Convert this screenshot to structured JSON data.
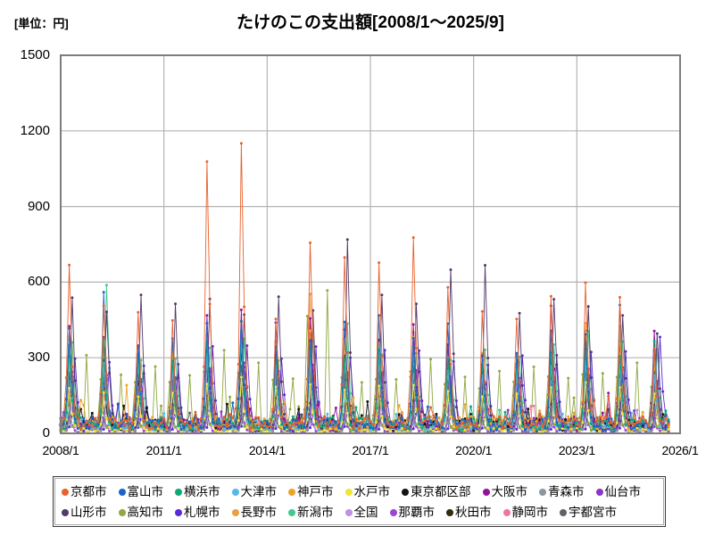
{
  "header": {
    "title": "たけのこの支出額[2008/1～2025/9]",
    "unit_label": "[単位：円]"
  },
  "colors": {
    "background": "#ffffff",
    "axis_border": "#7d7d7d",
    "gridline": "#b4b4b4",
    "text": "#000000"
  },
  "chart_data": {
    "type": "line",
    "title": "たけのこの支出額[2008/1～2025/9]",
    "unit": "円",
    "x_start": "2008/1",
    "x_end": "2025/9",
    "x_ticks": [
      "2008/1",
      "2011/1",
      "2014/1",
      "2017/1",
      "2020/1",
      "2023/1",
      "2026/1"
    ],
    "months_span": 216,
    "data_months": 213,
    "ylim": [
      0,
      1500
    ],
    "y_ticks": [
      0,
      300,
      600,
      900,
      1200,
      1500
    ],
    "grid": true,
    "legend_position": "bottom",
    "seasonality_note": "monthly series, sharp spring spikes each year, low off-season baseline",
    "peak_years": [
      2008,
      2009,
      2010,
      2011,
      2012,
      2013,
      2014,
      2015,
      2016,
      2017,
      2018,
      2019,
      2020,
      2021,
      2022,
      2023,
      2024,
      2025
    ],
    "series": [
      {
        "name": "京都市",
        "color": "#E8622D",
        "baseline": 45,
        "peak_month": 3,
        "peaks": [
          700,
          520,
          470,
          440,
          1120,
          1113,
          460,
          790,
          690,
          665,
          768,
          560,
          470,
          470,
          530,
          585,
          545,
          350
        ]
      },
      {
        "name": "富山市",
        "color": "#1C63C8",
        "baseline": 40,
        "peak_month": 3,
        "peaks": [
          430,
          555,
          340,
          380,
          420,
          430,
          360,
          380,
          430,
          450,
          390,
          420,
          310,
          330,
          420,
          380,
          500,
          320
        ]
      },
      {
        "name": "横浜市",
        "color": "#0EA878",
        "baseline": 42,
        "peak_month": 3,
        "peaks": [
          350,
          380,
          300,
          285,
          350,
          400,
          320,
          350,
          305,
          330,
          350,
          285,
          265,
          285,
          320,
          350,
          305,
          380
        ]
      },
      {
        "name": "大津市",
        "color": "#55B8E8",
        "baseline": 35,
        "peak_month": 3,
        "peaks": [
          300,
          285,
          255,
          260,
          320,
          350,
          280,
          300,
          285,
          300,
          320,
          250,
          235,
          250,
          280,
          300,
          280,
          225
        ]
      },
      {
        "name": "神戸市",
        "color": "#EDA32A",
        "baseline": 45,
        "peak_month": 3,
        "peaks": [
          385,
          350,
          305,
          330,
          400,
          430,
          350,
          400,
          380,
          355,
          400,
          305,
          285,
          300,
          350,
          420,
          400,
          285
        ]
      },
      {
        "name": "水戸市",
        "color": "#F2E436",
        "baseline": 15,
        "peak_month": 3,
        "peaks": [
          180,
          160,
          150,
          160,
          200,
          220,
          180,
          200,
          180,
          190,
          200,
          160,
          150,
          160,
          180,
          200,
          190,
          150
        ]
      },
      {
        "name": "東京都区部",
        "color": "#141414",
        "baseline": 40,
        "peak_month": 3,
        "peaks": [
          300,
          285,
          260,
          270,
          330,
          350,
          300,
          320,
          300,
          310,
          320,
          270,
          250,
          260,
          290,
          310,
          300,
          245
        ]
      },
      {
        "name": "大阪市",
        "color": "#96119B",
        "baseline": 40,
        "peak_month": 3,
        "peaks": [
          430,
          400,
          350,
          335,
          450,
          500,
          420,
          460,
          430,
          380,
          430,
          350,
          300,
          320,
          530,
          400,
          380,
          390
        ]
      },
      {
        "name": "青森市",
        "color": "#8C96A0",
        "baseline": 20,
        "peak_month": 4,
        "peaks": [
          150,
          140,
          130,
          140,
          170,
          180,
          150,
          160,
          150,
          160,
          170,
          140,
          130,
          140,
          150,
          160,
          155,
          120
        ]
      },
      {
        "name": "仙台市",
        "color": "#8D35C8",
        "baseline": 30,
        "peak_month": 4,
        "peaks": [
          250,
          230,
          210,
          220,
          270,
          290,
          250,
          260,
          240,
          250,
          260,
          220,
          200,
          210,
          240,
          260,
          250,
          200
        ]
      },
      {
        "name": "山形市",
        "color": "#54396B",
        "baseline": 25,
        "peak_month": 4,
        "peaks": [
          520,
          480,
          530,
          530,
          520,
          470,
          530,
          480,
          755,
          540,
          520,
          650,
          645,
          490,
          555,
          520,
          460,
          400
        ]
      },
      {
        "name": "高知市",
        "color": "#8FA840",
        "baseline": 35,
        "peak_month": 2,
        "secondary": {
          "month": 9,
          "ratio": 1.25
        },
        "peaks": [
          230,
          205,
          195,
          200,
          240,
          250,
          220,
          460,
          215,
          225,
          235,
          200,
          185,
          195,
          215,
          230,
          220,
          180
        ]
      },
      {
        "name": "札幌市",
        "color": "#5B2BD6",
        "baseline": 20,
        "peak_month": 5,
        "peaks": [
          310,
          290,
          270,
          280,
          340,
          360,
          310,
          330,
          310,
          320,
          330,
          285,
          260,
          300,
          310,
          330,
          320,
          400
        ]
      },
      {
        "name": "長野市",
        "color": "#E8A040",
        "baseline": 30,
        "peak_month": 3,
        "peaks": [
          380,
          350,
          320,
          330,
          400,
          430,
          370,
          540,
          370,
          380,
          400,
          340,
          310,
          330,
          370,
          400,
          430,
          300
        ]
      },
      {
        "name": "新潟市",
        "color": "#43C98E",
        "baseline": 30,
        "peak_month": 4,
        "peaks": [
          355,
          600,
          285,
          300,
          325,
          380,
          300,
          350,
          430,
          305,
          330,
          285,
          320,
          300,
          350,
          420,
          380,
          335
        ]
      },
      {
        "name": "全国",
        "color": "#C08FE8",
        "baseline": 30,
        "peak_month": 3,
        "peaks": [
          205,
          195,
          185,
          190,
          230,
          240,
          205,
          215,
          205,
          210,
          215,
          190,
          180,
          185,
          200,
          210,
          205,
          170
        ]
      },
      {
        "name": "那覇市",
        "color": "#9A46D8",
        "baseline": 10,
        "peak_month": 3,
        "peaks": [
          70,
          65,
          60,
          62,
          80,
          85,
          70,
          75,
          70,
          72,
          75,
          62,
          58,
          60,
          68,
          74,
          70,
          55
        ]
      },
      {
        "name": "秋田市",
        "color": "#332B10",
        "baseline": 20,
        "peak_month": 4,
        "peaks": [
          230,
          210,
          200,
          205,
          250,
          270,
          230,
          240,
          225,
          235,
          245,
          205,
          190,
          200,
          225,
          240,
          230,
          185
        ]
      },
      {
        "name": "静岡市",
        "color": "#F273A2",
        "baseline": 35,
        "peak_month": 3,
        "peaks": [
          280,
          260,
          240,
          250,
          300,
          320,
          275,
          290,
          270,
          280,
          290,
          245,
          230,
          240,
          270,
          290,
          280,
          225
        ]
      },
      {
        "name": "宇都宮市",
        "color": "#5F6268",
        "baseline": 30,
        "peak_month": 3,
        "peaks": [
          240,
          220,
          210,
          215,
          260,
          280,
          240,
          250,
          235,
          245,
          255,
          215,
          200,
          210,
          235,
          250,
          240,
          195
        ]
      }
    ]
  }
}
